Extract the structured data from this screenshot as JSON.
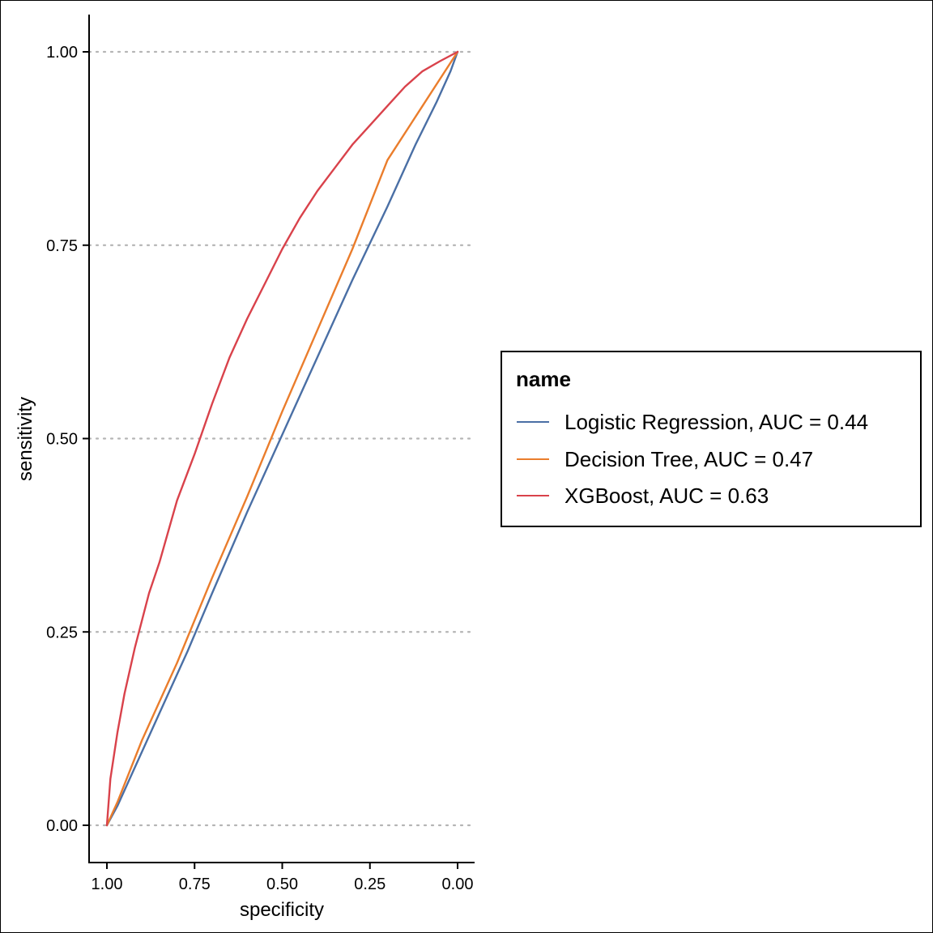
{
  "chart_data": {
    "type": "line",
    "title": "",
    "xlabel": "specificity",
    "ylabel": "sensitivity",
    "x_reversed": true,
    "xlim": [
      1.0,
      0.0
    ],
    "ylim": [
      0.0,
      1.0
    ],
    "x_ticks": [
      "1.00",
      "0.75",
      "0.50",
      "0.25",
      "0.00"
    ],
    "y_ticks": [
      "0.00",
      "0.25",
      "0.50",
      "0.75",
      "1.00"
    ],
    "grid": "horizontal dotted",
    "legend_position": "right",
    "legend_title": "name",
    "series": [
      {
        "name": "Logistic Regression, AUC = 0.44",
        "color": "#4a6fa5",
        "x": [
          1.0,
          0.97,
          0.92,
          0.85,
          0.77,
          0.7,
          0.6,
          0.5,
          0.4,
          0.3,
          0.2,
          0.12,
          0.06,
          0.02,
          0.0
        ],
        "y": [
          0.0,
          0.025,
          0.075,
          0.145,
          0.225,
          0.3,
          0.405,
          0.505,
          0.605,
          0.705,
          0.8,
          0.88,
          0.935,
          0.975,
          1.0
        ]
      },
      {
        "name": "Decision Tree, AUC = 0.47",
        "color": "#ea7d2c",
        "x": [
          1.0,
          0.97,
          0.9,
          0.8,
          0.7,
          0.6,
          0.5,
          0.4,
          0.3,
          0.2,
          0.1,
          0.0
        ],
        "y": [
          0.0,
          0.03,
          0.11,
          0.21,
          0.32,
          0.425,
          0.535,
          0.64,
          0.745,
          0.86,
          0.93,
          1.0
        ]
      },
      {
        "name": "XGBoost, AUC = 0.63",
        "color": "#d9424b",
        "x": [
          1.0,
          0.99,
          0.97,
          0.95,
          0.92,
          0.88,
          0.85,
          0.8,
          0.75,
          0.7,
          0.65,
          0.6,
          0.55,
          0.5,
          0.45,
          0.4,
          0.35,
          0.3,
          0.25,
          0.2,
          0.15,
          0.1,
          0.05,
          0.0
        ],
        "y": [
          0.0,
          0.06,
          0.12,
          0.17,
          0.23,
          0.3,
          0.34,
          0.42,
          0.48,
          0.545,
          0.605,
          0.655,
          0.7,
          0.745,
          0.785,
          0.82,
          0.85,
          0.88,
          0.905,
          0.93,
          0.955,
          0.975,
          0.988,
          1.0
        ]
      }
    ]
  }
}
